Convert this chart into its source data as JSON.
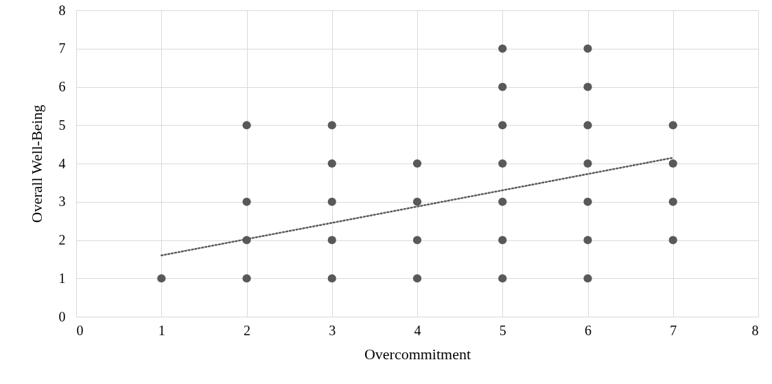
{
  "chart_data": {
    "type": "scatter",
    "xlabel": "Overcommitment",
    "ylabel": "Overall Well-Being",
    "xlim": [
      0,
      8
    ],
    "ylim": [
      0,
      8
    ],
    "xticks": [
      0,
      1,
      2,
      3,
      4,
      5,
      6,
      7,
      8
    ],
    "yticks": [
      0,
      1,
      2,
      3,
      4,
      5,
      6,
      7,
      8
    ],
    "grid": true,
    "series": [
      {
        "marker": "circle",
        "color": "#595959",
        "x": [
          1,
          2,
          2,
          2,
          2,
          3,
          3,
          3,
          3,
          3,
          4,
          4,
          4,
          4,
          5,
          5,
          5,
          5,
          5,
          5,
          5,
          6,
          6,
          6,
          6,
          6,
          6,
          6,
          7,
          7,
          7,
          7
        ],
        "values": [
          1,
          5,
          3,
          2,
          1,
          5,
          4,
          3,
          2,
          1,
          4,
          3,
          2,
          1,
          7,
          6,
          5,
          4,
          3,
          2,
          1,
          7,
          6,
          5,
          4,
          3,
          2,
          1,
          5,
          4,
          3,
          2
        ]
      },
      {
        "type": "line",
        "color": "#595959",
        "line_style": "dotted",
        "x": [
          1,
          7
        ],
        "values": [
          1.6,
          4.15
        ]
      }
    ]
  }
}
